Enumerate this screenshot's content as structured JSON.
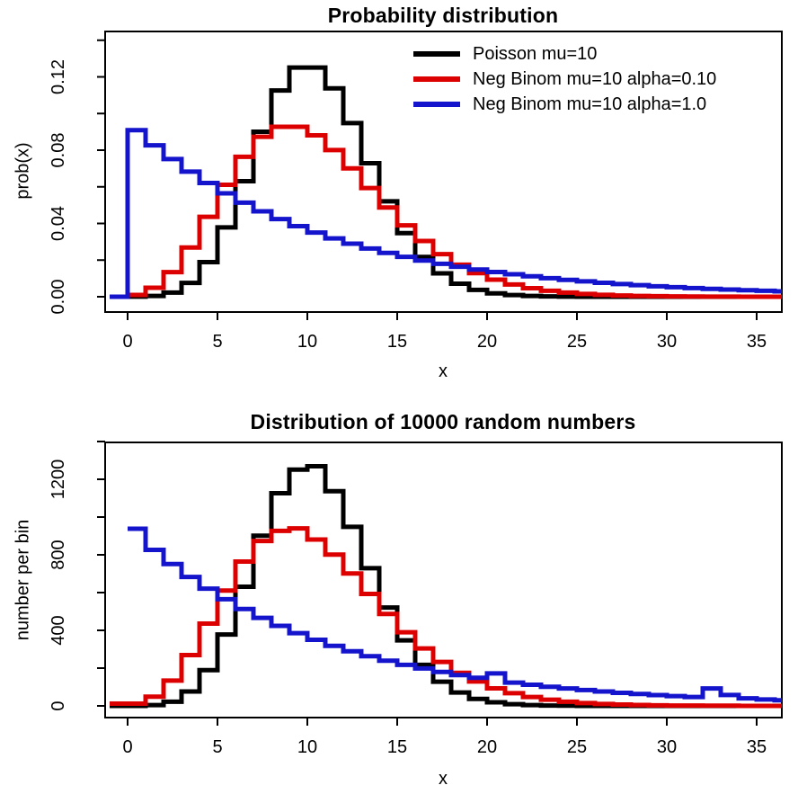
{
  "colors": {
    "black": "#000000",
    "red": "#DD0000",
    "blue": "#1414CC"
  },
  "chart_data": [
    {
      "type": "line",
      "style": "step",
      "title": "Probability distribution",
      "xlabel": "x",
      "ylabel": "prob(x)",
      "xlim": [
        -1.3,
        36.4
      ],
      "ylim": [
        -0.008,
        0.145
      ],
      "grid": false,
      "legend_position": "top-right",
      "x_ticks": [
        {
          "v": 0,
          "l": "0"
        },
        {
          "v": 5,
          "l": "5"
        },
        {
          "v": 10,
          "l": "10"
        },
        {
          "v": 15,
          "l": "15"
        },
        {
          "v": 20,
          "l": "20"
        },
        {
          "v": 25,
          "l": "25"
        },
        {
          "v": 30,
          "l": "30"
        },
        {
          "v": 35,
          "l": "35"
        }
      ],
      "y_ticks": [
        {
          "v": 0,
          "l": "0.00"
        },
        {
          "v": 0.02,
          "l": ""
        },
        {
          "v": 0.04,
          "l": "0.04"
        },
        {
          "v": 0.06,
          "l": ""
        },
        {
          "v": 0.08,
          "l": "0.08"
        },
        {
          "v": 0.1,
          "l": ""
        },
        {
          "v": 0.12,
          "l": "0.12"
        },
        {
          "v": 0.14,
          "l": ""
        }
      ],
      "legend": [
        {
          "label": "Poisson mu=10",
          "color": "#000000"
        },
        {
          "label": "Neg Binom mu=10 alpha=0.10",
          "color": "#DD0000"
        },
        {
          "label": "Neg Binom mu=10 alpha=1.0",
          "color": "#1414CC"
        }
      ],
      "series": [
        {
          "name": "poisson-mu10",
          "color": "#000000",
          "x0": -1,
          "values": [
            0,
            5e-05,
            0.00045,
            0.00227,
            0.00757,
            0.01892,
            0.03783,
            0.06306,
            0.09008,
            0.1126,
            0.12511,
            0.12511,
            0.11374,
            0.09478,
            0.07291,
            0.05208,
            0.03472,
            0.0217,
            0.01276,
            0.00709,
            0.00373,
            0.00187,
            0.00089,
            0.0004,
            0.00018,
            8e-05,
            3e-05,
            1e-05,
            0,
            0,
            0,
            0,
            0,
            0,
            0,
            0,
            0,
            0
          ]
        },
        {
          "name": "negbinom-mu10-alpha0.10",
          "color": "#DD0000",
          "x0": -1,
          "values": [
            0,
            0.00098,
            0.00488,
            0.01343,
            0.02686,
            0.04364,
            0.0611,
            0.07637,
            0.08728,
            0.09274,
            0.09274,
            0.0881,
            0.08009,
            0.07008,
            0.0593,
            0.04871,
            0.03897,
            0.03044,
            0.02328,
            0.01746,
            0.01286,
            0.00933,
            0.00666,
            0.00469,
            0.00327,
            0.00225,
            0.00153,
            0.00103,
            0.00068,
            0.00045,
            0.0003,
            0.00019,
            0.00013,
            8e-05,
            5e-05,
            3e-05,
            2e-05,
            1e-05
          ]
        },
        {
          "name": "negbinom-mu10-alpha1.0",
          "color": "#1414CC",
          "x0": -1,
          "values": [
            0,
            0.09091,
            0.08264,
            0.07513,
            0.0683,
            0.06209,
            0.05645,
            0.05132,
            0.04665,
            0.04241,
            0.03855,
            0.03505,
            0.03186,
            0.02897,
            0.02633,
            0.02394,
            0.02176,
            0.01978,
            0.01798,
            0.01635,
            0.01486,
            0.01351,
            0.01228,
            0.01117,
            0.01015,
            0.00923,
            0.00839,
            0.00763,
            0.00693,
            0.0063,
            0.00573,
            0.00521,
            0.00474,
            0.00431,
            0.00391,
            0.00356,
            0.00323,
            0.00294
          ]
        }
      ]
    },
    {
      "type": "line",
      "style": "step",
      "title": "Distribution of 10000 random numbers",
      "xlabel": "x",
      "ylabel": "number per bin",
      "xlim": [
        -1.3,
        36.4
      ],
      "ylim": [
        -60,
        1450
      ],
      "grid": false,
      "x_ticks": [
        {
          "v": 0,
          "l": "0"
        },
        {
          "v": 5,
          "l": "5"
        },
        {
          "v": 10,
          "l": "10"
        },
        {
          "v": 15,
          "l": "15"
        },
        {
          "v": 20,
          "l": "20"
        },
        {
          "v": 25,
          "l": "25"
        },
        {
          "v": 30,
          "l": "30"
        },
        {
          "v": 35,
          "l": "35"
        }
      ],
      "y_ticks": [
        {
          "v": 0,
          "l": "0"
        },
        {
          "v": 200,
          "l": ""
        },
        {
          "v": 400,
          "l": "400"
        },
        {
          "v": 600,
          "l": ""
        },
        {
          "v": 800,
          "l": "800"
        },
        {
          "v": 1000,
          "l": ""
        },
        {
          "v": 1200,
          "l": "1200"
        },
        {
          "v": 1400,
          "l": ""
        }
      ],
      "series": [
        {
          "name": "poisson-mu10-sample",
          "color": "#000000",
          "x0": -1,
          "values": [
            0,
            0,
            4,
            22,
            76,
            189,
            378,
            631,
            901,
            1126,
            1251,
            1269,
            1137,
            948,
            729,
            521,
            347,
            217,
            128,
            71,
            37,
            19,
            9,
            4,
            2,
            1,
            0,
            0,
            0,
            0,
            0,
            0,
            0,
            0,
            0,
            0,
            0,
            0
          ]
        },
        {
          "name": "negbinom-mu10-alpha0.10-sample",
          "color": "#DD0000",
          "x0": -1,
          "values": [
            12,
            12,
            49,
            134,
            269,
            436,
            611,
            764,
            873,
            927,
            940,
            881,
            801,
            701,
            593,
            487,
            390,
            304,
            233,
            175,
            129,
            93,
            67,
            47,
            33,
            22,
            15,
            10,
            7,
            5,
            3,
            2,
            2,
            1,
            1,
            0,
            0,
            0
          ]
        },
        {
          "name": "negbinom-mu10-alpha1.0-sample",
          "color": "#1414CC",
          "x0": 0,
          "values": [
            938,
            826,
            751,
            683,
            621,
            565,
            513,
            466,
            424,
            385,
            350,
            318,
            289,
            263,
            239,
            217,
            198,
            180,
            163,
            149,
            172,
            123,
            112,
            101,
            92,
            84,
            76,
            69,
            63,
            57,
            52,
            47,
            92,
            58,
            40,
            34,
            30
          ]
        }
      ]
    }
  ]
}
